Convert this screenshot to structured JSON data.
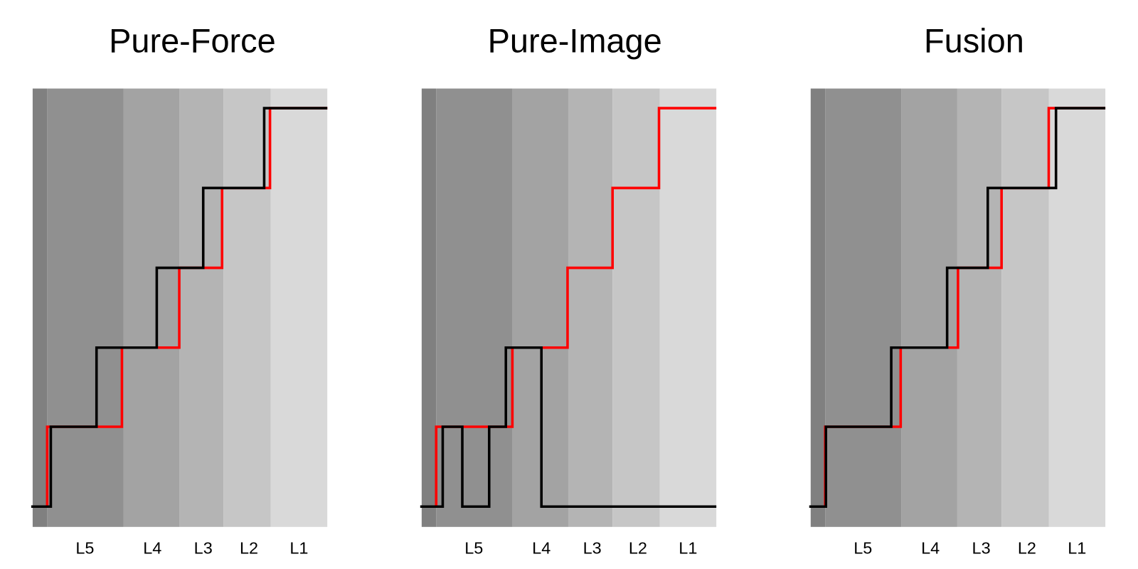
{
  "panels": [
    {
      "title": "Pure-Force",
      "band_labels": [
        "L5",
        "L4",
        "L3",
        "L2",
        "L1"
      ]
    },
    {
      "title": "Pure-Image",
      "band_labels": [
        "L5",
        "L4",
        "L3",
        "L2",
        "L1"
      ]
    },
    {
      "title": "Fusion",
      "band_labels": [
        "L5",
        "L4",
        "L3",
        "L2",
        "L1"
      ]
    }
  ]
}
